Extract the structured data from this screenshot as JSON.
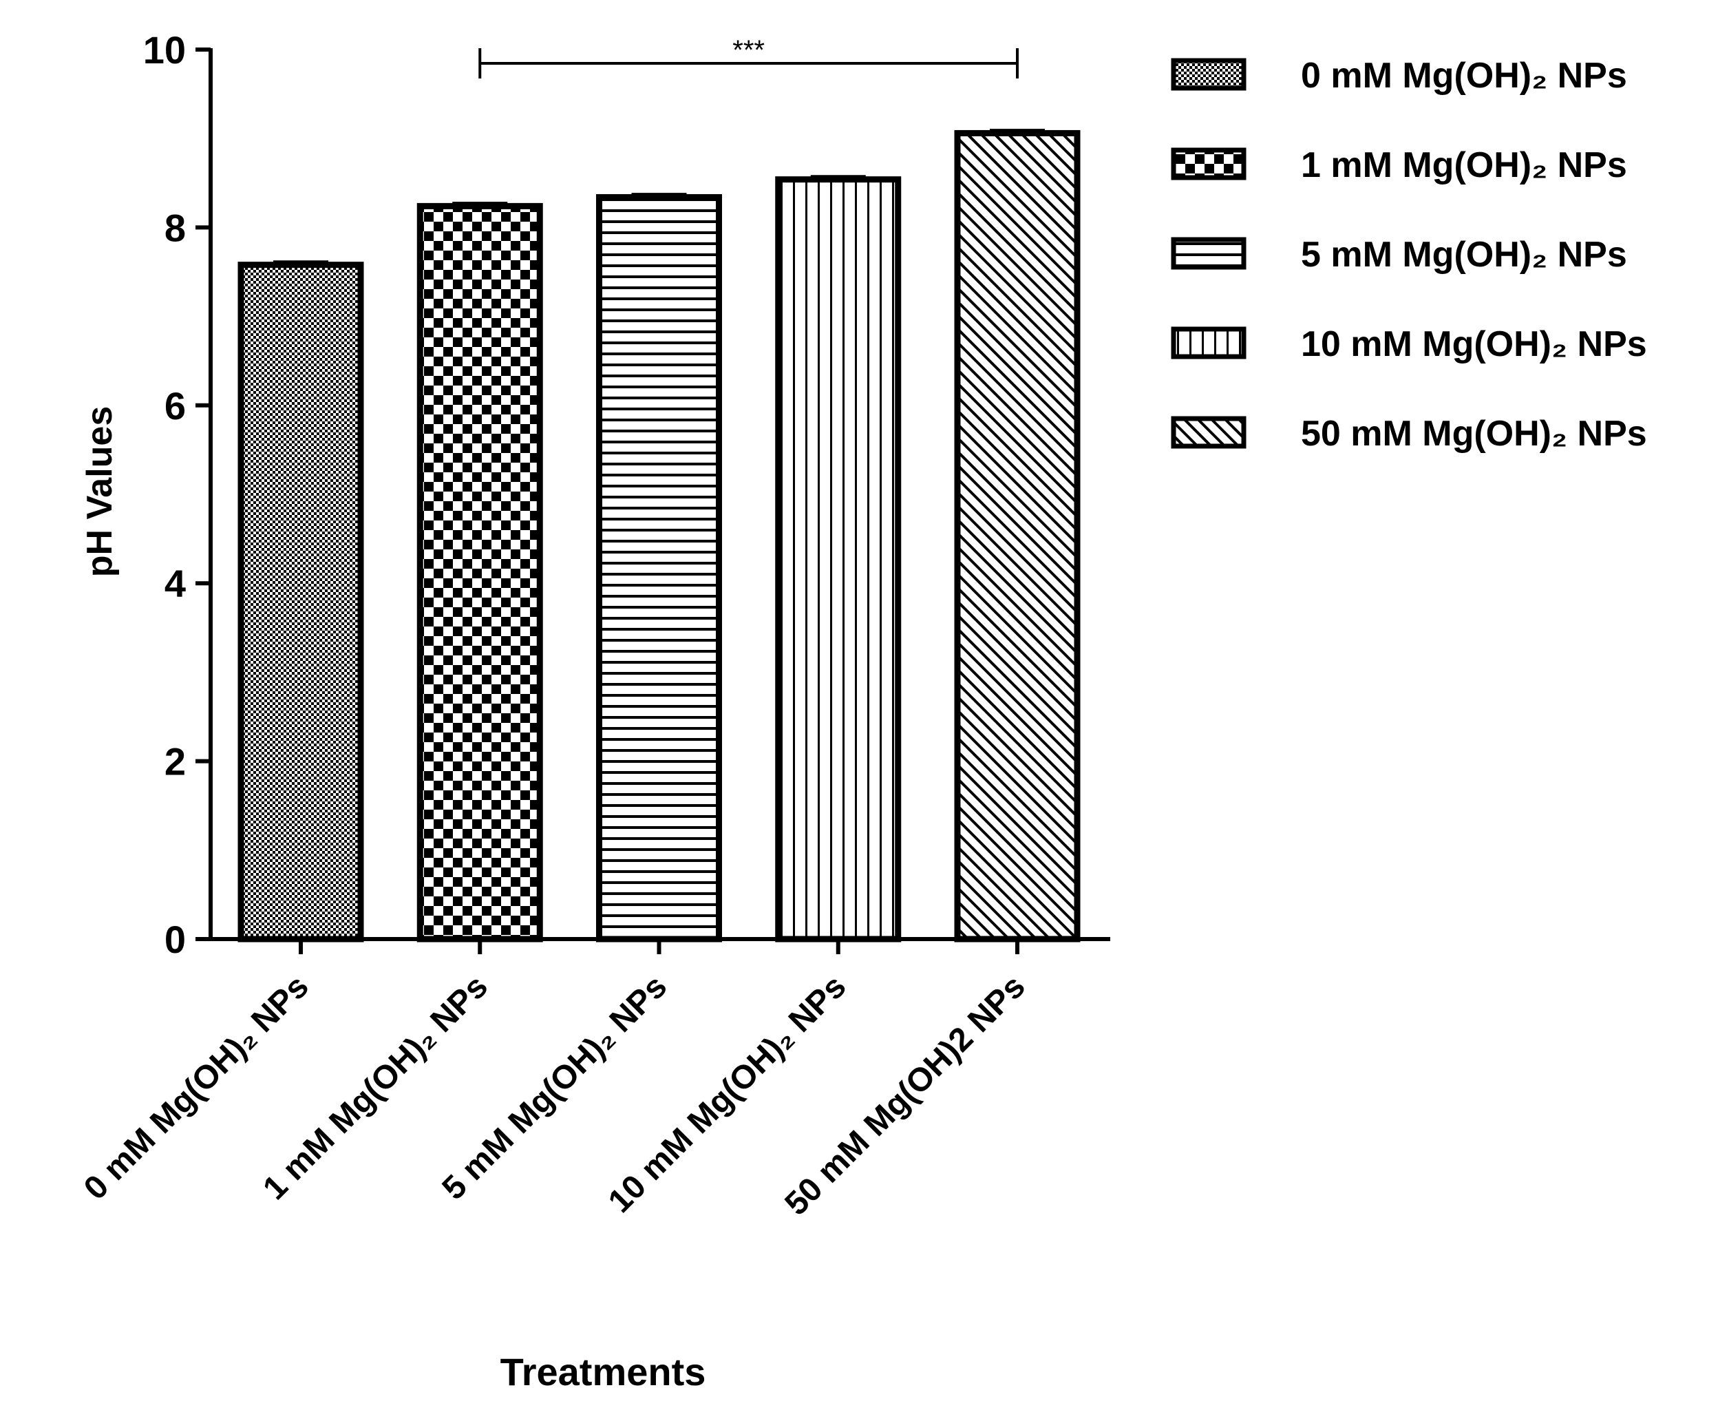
{
  "chart_data": {
    "type": "bar",
    "title": "",
    "xlabel": "Treatments",
    "ylabel": "pH Values",
    "ylim": [
      0,
      10
    ],
    "yticks": [
      0,
      2,
      4,
      6,
      8,
      10
    ],
    "grid": false,
    "legend_position": "top-right",
    "categories": [
      "0 mM Mg(OH)₂ NPs",
      "1 mM Mg(OH)₂ NPs",
      "5 mM Mg(OH)₂ NPs",
      "10 mM Mg(OH)₂ NPs",
      "50 mM Mg(OH)2 NPs"
    ],
    "values": [
      7.58,
      8.24,
      8.34,
      8.54,
      9.06
    ],
    "errors": [
      0.03,
      0.03,
      0.03,
      0.03,
      0.03
    ],
    "patterns": [
      "fine-check",
      "checkerboard",
      "horizontal-lines",
      "vertical-lines",
      "diagonal-lines"
    ],
    "legend": [
      "0 mM Mg(OH)₂ NPs",
      "1 mM Mg(OH)₂ NPs",
      "5 mM Mg(OH)₂ NPs",
      "10 mM Mg(OH)₂ NPs",
      "50 mM Mg(OH)₂ NPs"
    ],
    "significance": {
      "from_index": 1,
      "to_index": 4,
      "label": "***"
    }
  },
  "colors": {
    "ink": "#000000",
    "background": "#ffffff"
  }
}
